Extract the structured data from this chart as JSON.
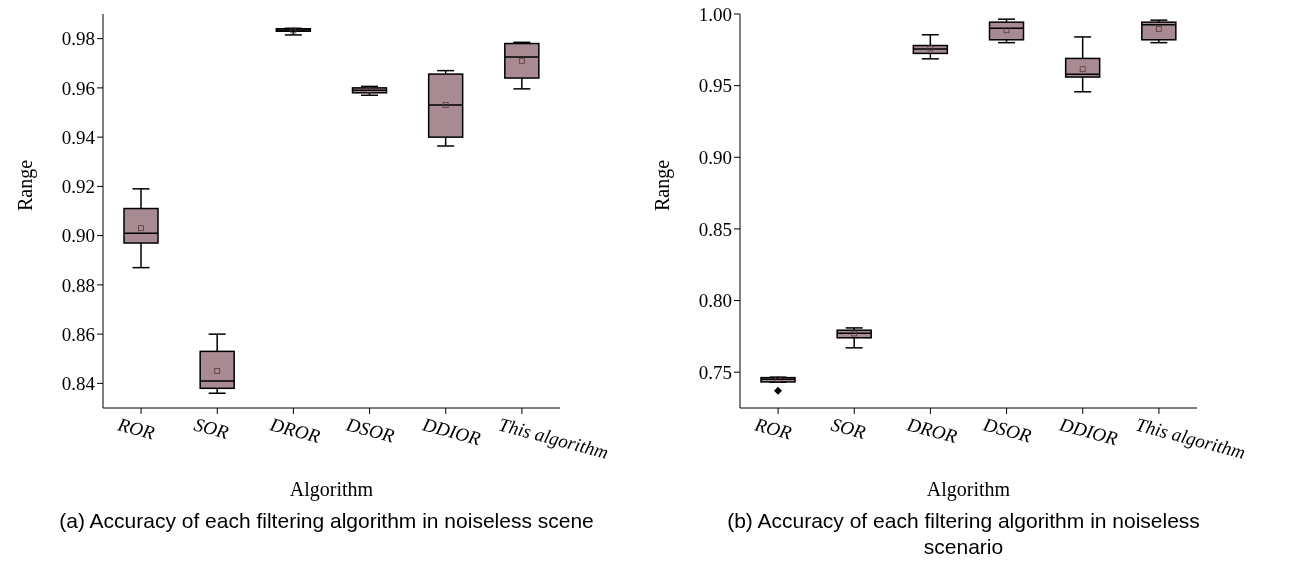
{
  "chart_data": [
    {
      "type": "box",
      "title": "(a) Accuracy of each filtering algorithm in noiseless scene",
      "xlabel": "Algorithm",
      "ylabel": "Range",
      "categories": [
        "ROR",
        "SOR",
        "DROR",
        "DSOR",
        "DDIOR",
        "This algorithm"
      ],
      "color": "#a88a92",
      "boxes": [
        {
          "low": 0.887,
          "q1": 0.897,
          "median": 0.901,
          "q3": 0.911,
          "high": 0.919,
          "mean": 0.903
        },
        {
          "low": 0.836,
          "q1": 0.838,
          "median": 0.841,
          "q3": 0.853,
          "high": 0.86,
          "mean": 0.845
        },
        {
          "low": 0.9815,
          "q1": 0.983,
          "median": 0.9835,
          "q3": 0.984,
          "high": 0.9842,
          "mean": 0.9833
        },
        {
          "low": 0.957,
          "q1": 0.958,
          "median": 0.959,
          "q3": 0.96,
          "high": 0.9606,
          "mean": 0.959
        },
        {
          "low": 0.9364,
          "q1": 0.94,
          "median": 0.953,
          "q3": 0.9656,
          "high": 0.967,
          "mean": 0.953
        },
        {
          "low": 0.9596,
          "q1": 0.964,
          "median": 0.9725,
          "q3": 0.978,
          "high": 0.9785,
          "mean": 0.971
        }
      ],
      "ylim": [
        0.83,
        0.99
      ],
      "yticks": [
        0.84,
        0.86,
        0.88,
        {
          "value": 0.9,
          "label": "0.90"
        },
        0.92,
        0.94,
        0.96,
        0.98
      ]
    },
    {
      "type": "box",
      "title": "(b) Accuracy of each filtering algorithm in noiseless scenario",
      "xlabel": "Algorithm",
      "ylabel": "Range",
      "categories": [
        "ROR",
        "SOR",
        "DROR",
        "DSOR",
        "DDIOR",
        "This algorithm"
      ],
      "color": "#a88a92",
      "boxes": [
        {
          "low": 0.743,
          "q1": 0.7432,
          "median": 0.745,
          "q3": 0.7462,
          "high": 0.7465,
          "mean": 0.745,
          "outliers": [
            0.737
          ]
        },
        {
          "low": 0.767,
          "q1": 0.774,
          "median": 0.7772,
          "q3": 0.7793,
          "high": 0.7809,
          "mean": 0.777
        },
        {
          "low": 0.9687,
          "q1": 0.9725,
          "median": 0.9755,
          "q3": 0.978,
          "high": 0.9855,
          "mean": 0.976
        },
        {
          "low": 0.98,
          "q1": 0.982,
          "median": 0.99,
          "q3": 0.9943,
          "high": 0.9964,
          "mean": 0.9887
        },
        {
          "low": 0.9457,
          "q1": 0.956,
          "median": 0.958,
          "q3": 0.969,
          "high": 0.984,
          "mean": 0.9615
        },
        {
          "low": 0.98,
          "q1": 0.982,
          "median": 0.9925,
          "q3": 0.9943,
          "high": 0.9957,
          "mean": 0.9896
        }
      ],
      "ylim": [
        0.725,
        1.0
      ],
      "yticks": [
        0.75,
        {
          "value": 0.8,
          "label": "0.80"
        },
        0.85,
        {
          "value": 0.9,
          "label": "0.90"
        },
        0.95,
        {
          "value": 1.0,
          "label": "1.00"
        }
      ]
    }
  ]
}
